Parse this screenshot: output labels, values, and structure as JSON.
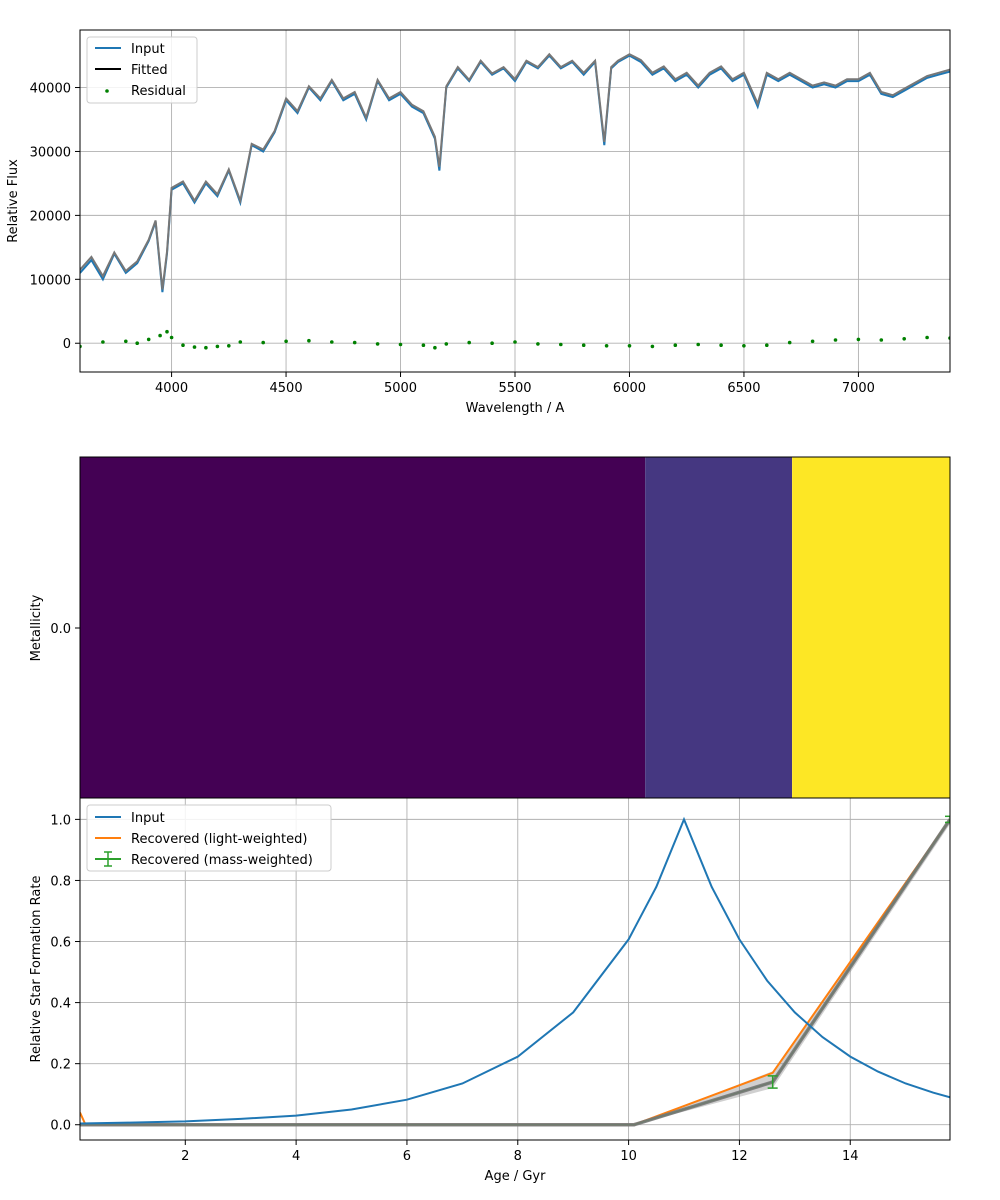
{
  "chart_data": [
    {
      "type": "line",
      "panel": "spectrum",
      "xlabel": "Wavelength / A",
      "ylabel": "Relative Flux",
      "xlim": [
        3600,
        7400
      ],
      "ylim": [
        -4500,
        49000
      ],
      "xticks": [
        4000,
        4500,
        5000,
        5500,
        6000,
        6500,
        7000
      ],
      "yticks": [
        0,
        10000,
        20000,
        30000,
        40000
      ],
      "grid": true,
      "legend_position": "upper-left",
      "legend": [
        "Input",
        "Fitted",
        "Residual"
      ],
      "colors": {
        "Input": "#1f77b4",
        "Fitted": "#000000",
        "Fitted_overlay": "#777777",
        "Residual": "#008000"
      },
      "series": [
        {
          "name": "Input",
          "style": "line",
          "x": [
            3600,
            3650,
            3700,
            3750,
            3800,
            3850,
            3900,
            3930,
            3960,
            3980,
            4000,
            4050,
            4100,
            4150,
            4200,
            4250,
            4300,
            4350,
            4400,
            4450,
            4500,
            4550,
            4600,
            4650,
            4700,
            4750,
            4800,
            4850,
            4900,
            4950,
            5000,
            5050,
            5100,
            5150,
            5170,
            5200,
            5250,
            5300,
            5350,
            5400,
            5450,
            5500,
            5550,
            5600,
            5650,
            5700,
            5750,
            5800,
            5850,
            5890,
            5920,
            5950,
            6000,
            6050,
            6100,
            6150,
            6200,
            6250,
            6300,
            6350,
            6400,
            6450,
            6500,
            6560,
            6600,
            6650,
            6700,
            6750,
            6800,
            6850,
            6900,
            6950,
            7000,
            7050,
            7100,
            7150,
            7200,
            7250,
            7300,
            7350,
            7400
          ],
          "y": [
            11000,
            13000,
            10000,
            14000,
            11000,
            12500,
            16000,
            19000,
            8000,
            14000,
            24000,
            25000,
            22000,
            25000,
            23000,
            27000,
            22000,
            31000,
            30000,
            33000,
            38000,
            36000,
            40000,
            38000,
            41000,
            38000,
            39000,
            35000,
            41000,
            38000,
            39000,
            37000,
            36000,
            32000,
            27000,
            40000,
            43000,
            41000,
            44000,
            42000,
            43000,
            41000,
            44000,
            43000,
            45000,
            43000,
            44000,
            42000,
            44000,
            31000,
            43000,
            44000,
            45000,
            44000,
            42000,
            43000,
            41000,
            42000,
            40000,
            42000,
            43000,
            41000,
            42000,
            37000,
            42000,
            41000,
            42000,
            41000,
            40000,
            40500,
            40000,
            41000,
            41000,
            42000,
            39000,
            38500,
            39500,
            40500,
            41500,
            42000,
            42500
          ]
        },
        {
          "name": "Fitted",
          "style": "line",
          "x": [
            3600,
            3650,
            3700,
            3750,
            3800,
            3850,
            3900,
            3930,
            3960,
            3980,
            4000,
            4050,
            4100,
            4150,
            4200,
            4250,
            4300,
            4350,
            4400,
            4450,
            4500,
            4550,
            4600,
            4650,
            4700,
            4750,
            4800,
            4850,
            4900,
            4950,
            5000,
            5050,
            5100,
            5150,
            5170,
            5200,
            5250,
            5300,
            5350,
            5400,
            5450,
            5500,
            5550,
            5600,
            5650,
            5700,
            5750,
            5800,
            5850,
            5890,
            5920,
            5950,
            6000,
            6050,
            6100,
            6150,
            6200,
            6250,
            6300,
            6350,
            6400,
            6450,
            6500,
            6560,
            6600,
            6650,
            6700,
            6750,
            6800,
            6850,
            6900,
            6950,
            7000,
            7050,
            7100,
            7150,
            7200,
            7250,
            7300,
            7350,
            7400
          ],
          "y": [
            11500,
            13500,
            10500,
            14200,
            11300,
            12800,
            16200,
            19200,
            8400,
            14300,
            24300,
            25300,
            22300,
            25300,
            23300,
            27200,
            22300,
            31200,
            30300,
            33200,
            38300,
            36300,
            40200,
            38300,
            41200,
            38300,
            39300,
            35300,
            41200,
            38300,
            39300,
            37300,
            36300,
            32300,
            27600,
            40200,
            43200,
            41200,
            44200,
            42200,
            43200,
            41300,
            44200,
            43200,
            45200,
            43200,
            44200,
            42300,
            44200,
            31500,
            43200,
            44200,
            45200,
            44300,
            42300,
            43300,
            41300,
            42300,
            40300,
            42300,
            43300,
            41300,
            42300,
            37500,
            42300,
            41300,
            42300,
            41300,
            40300,
            40800,
            40300,
            41300,
            41300,
            42300,
            39300,
            38800,
            39800,
            40800,
            41800,
            42300,
            42800
          ]
        },
        {
          "name": "Residual",
          "style": "scatter",
          "x": [
            3600,
            3700,
            3800,
            3850,
            3900,
            3950,
            3980,
            4000,
            4050,
            4100,
            4150,
            4200,
            4250,
            4300,
            4400,
            4500,
            4600,
            4700,
            4800,
            4900,
            5000,
            5100,
            5150,
            5200,
            5300,
            5400,
            5500,
            5600,
            5700,
            5800,
            5900,
            6000,
            6100,
            6200,
            6300,
            6400,
            6500,
            6600,
            6700,
            6800,
            6900,
            7000,
            7100,
            7200,
            7300,
            7400
          ],
          "y": [
            -500,
            200,
            300,
            0,
            600,
            1200,
            1800,
            900,
            -300,
            -600,
            -700,
            -500,
            -400,
            200,
            100,
            300,
            400,
            200,
            100,
            -100,
            -200,
            -300,
            -700,
            -100,
            100,
            0,
            200,
            -100,
            -200,
            -300,
            -400,
            -400,
            -500,
            -300,
            -200,
            -300,
            -400,
            -300,
            100,
            300,
            500,
            600,
            500,
            700,
            900,
            800
          ]
        }
      ]
    },
    {
      "type": "heatmap",
      "panel": "metallicity",
      "ylabel": "Metallicity",
      "yticks": [
        "0.0"
      ],
      "x_shared_with": "star-formation",
      "cells": [
        {
          "age_start": 0.1,
          "age_end": 10.3,
          "color": "#440154"
        },
        {
          "age_start": 10.3,
          "age_end": 12.95,
          "color": "#453781"
        },
        {
          "age_start": 12.95,
          "age_end": 15.8,
          "color": "#fde725"
        }
      ]
    },
    {
      "type": "line",
      "panel": "star-formation",
      "xlabel": "Age / Gyr",
      "ylabel": "Relative Star Formation Rate",
      "xlim": [
        0.1,
        15.8
      ],
      "ylim": [
        -0.05,
        1.07
      ],
      "xticks": [
        2,
        4,
        6,
        8,
        10,
        12,
        14
      ],
      "yticks": [
        0.0,
        0.2,
        0.4,
        0.6,
        0.8,
        1.0
      ],
      "grid": true,
      "legend_position": "upper-left",
      "legend": [
        "Input",
        "Recovered (light-weighted)",
        "Recovered (mass-weighted)"
      ],
      "colors": {
        "Input": "#1f77b4",
        "Recovered (light-weighted)": "#ff7f0e",
        "Recovered (mass-weighted)": "#2ca02c",
        "samples": "#777777"
      },
      "series": [
        {
          "name": "Input",
          "x": [
            0.1,
            1,
            2,
            3,
            4,
            5,
            6,
            7,
            8,
            9,
            10,
            10.5,
            11,
            11.5,
            12,
            12.5,
            13,
            13.5,
            14,
            14.5,
            15,
            15.5,
            15.8
          ],
          "y": [
            0.004,
            0.007,
            0.011,
            0.019,
            0.03,
            0.05,
            0.082,
            0.135,
            0.223,
            0.368,
            0.607,
            0.779,
            1.0,
            0.779,
            0.607,
            0.472,
            0.368,
            0.287,
            0.223,
            0.174,
            0.135,
            0.105,
            0.09
          ]
        },
        {
          "name": "Recovered (light-weighted)",
          "x": [
            0.1,
            0.2,
            1,
            10.1,
            12.6,
            15.8
          ],
          "y": [
            0.04,
            0.0,
            0.0,
            0.0,
            0.17,
            1.0
          ]
        },
        {
          "name": "Recovered (mass-weighted)",
          "x": [
            0.1,
            10.1,
            12.6,
            15.8
          ],
          "y": [
            0.0,
            0.0,
            0.14,
            1.0
          ],
          "yerr": [
            0.0,
            0.0,
            0.02,
            0.01
          ]
        }
      ]
    }
  ]
}
